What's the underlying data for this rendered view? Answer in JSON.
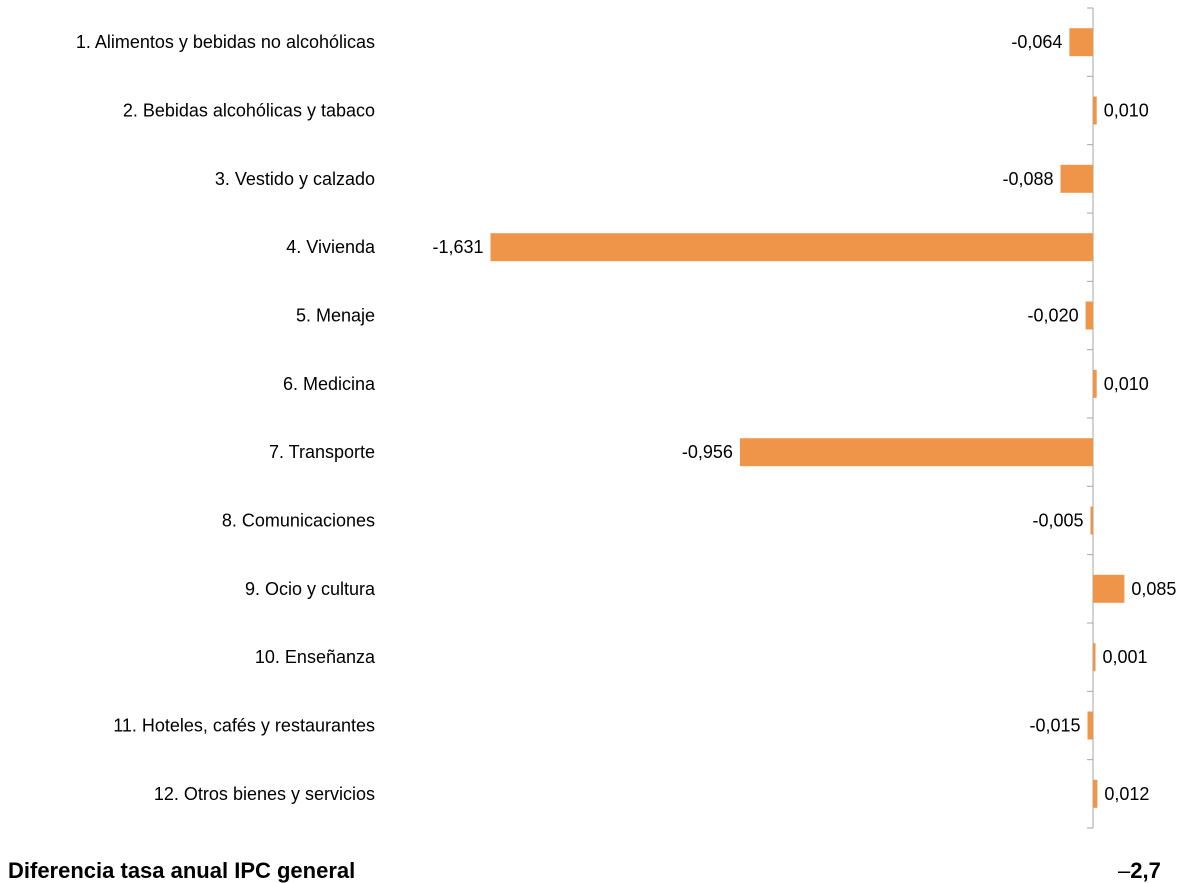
{
  "chart_data": {
    "type": "bar",
    "orientation": "horizontal",
    "categories": [
      "1. Alimentos y bebidas no alcohólicas",
      "2. Bebidas alcohólicas y tabaco",
      "3. Vestido y calzado",
      "4. Vivienda",
      "5. Menaje",
      "6. Medicina",
      "7. Transporte",
      "8. Comunicaciones",
      "9. Ocio y cultura",
      "10. Enseñanza",
      "11. Hoteles, cafés y restaurantes",
      "12. Otros bienes y servicios"
    ],
    "values": [
      -0.064,
      0.01,
      -0.088,
      -1.631,
      -0.02,
      0.01,
      -0.956,
      -0.005,
      0.085,
      0.001,
      -0.015,
      0.012
    ],
    "value_labels": [
      "-0,064",
      "0,010",
      "-0,088",
      "-1,631",
      "-0,020",
      "0,010",
      "-0,956",
      "-0,005",
      "0,085",
      "0,001",
      "-0,015",
      "0,012"
    ],
    "bar_color": "#EE9549",
    "axis_color": "#A6A6A6",
    "grid": false,
    "legend": "none"
  },
  "footer": {
    "label": "Diferencia tasa anual IPC general",
    "value_dash": "–",
    "value_number": "2,7"
  }
}
